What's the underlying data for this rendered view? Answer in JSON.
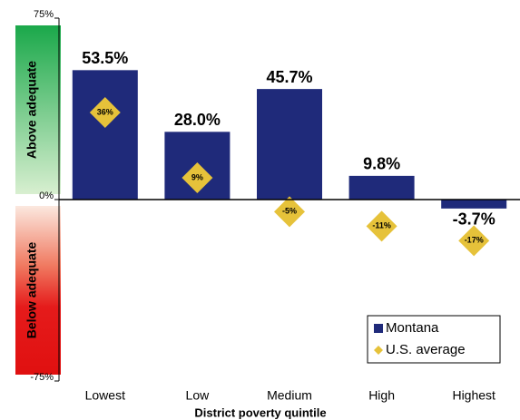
{
  "chart_data": {
    "type": "bar",
    "x_label": "District poverty quintile",
    "annotations": [
      "Above adequate",
      "Below adequate"
    ],
    "categories": [
      "Lowest",
      "Low",
      "Medium",
      "High",
      "Highest"
    ],
    "series": [
      {
        "name": "Montana",
        "color": "#1f2a7a",
        "mark": "bar",
        "values": [
          53.5,
          28.0,
          45.7,
          9.8,
          -3.7
        ],
        "value_labels": [
          "53.5%",
          "28.0%",
          "45.7%",
          "9.8%",
          "-3.7%"
        ]
      },
      {
        "name": "U.S. average",
        "color": "#e6c23a",
        "mark": "diamond",
        "values": [
          36,
          9,
          -5,
          -11,
          -17
        ],
        "value_labels": [
          "36%",
          "9%",
          "-5%",
          "-11%",
          "-17%"
        ]
      }
    ],
    "ylim": [
      -75,
      75
    ],
    "yticks": [
      {
        "value": -75,
        "label": "-75%"
      },
      {
        "value": 0,
        "label": "0%"
      },
      {
        "value": 75,
        "label": "75%"
      }
    ],
    "legend": "bottom-right"
  }
}
